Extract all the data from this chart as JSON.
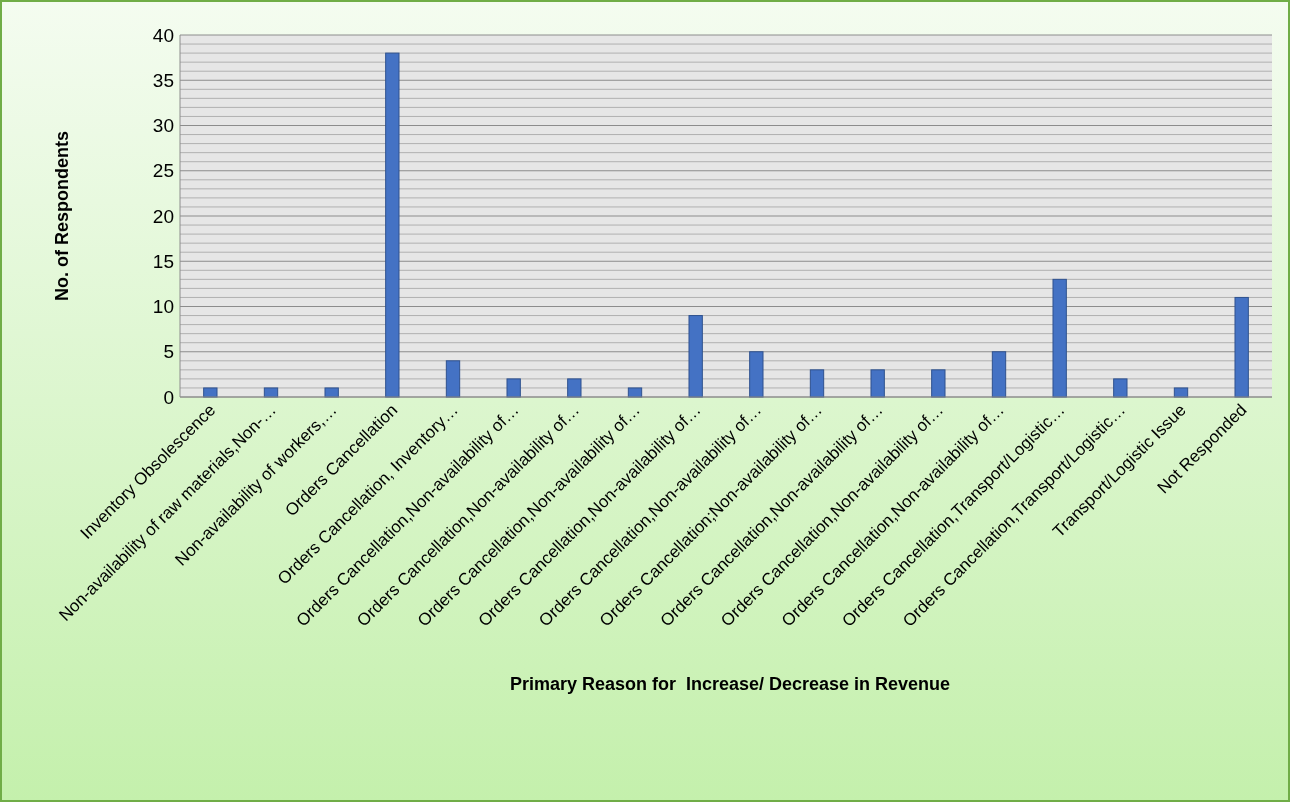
{
  "chart_data": {
    "type": "bar",
    "xlabel": "Primary Reason for  Increase/ Decrease in Revenue",
    "ylabel": "No. of Respondents",
    "categories": [
      "Inventory Obsolescence",
      "Non-availability of raw materials,Non-…",
      "Non-availability of workers,…",
      "Orders Cancellation",
      "Orders Cancellation, Inventory…",
      "Orders Cancellation,Non-availability of…",
      "Orders Cancellation,Non-availability of…",
      "Orders Cancellation,Non-availability of…",
      "Orders Cancellation,Non-availability of…",
      "Orders Cancellation,Non-availability of…",
      "Orders Cancellation;Non-availability of…",
      "Orders Cancellation,Non-availability of…",
      "Orders Cancellation,Non-availability of…",
      "Orders Cancellation,Non-availability of…",
      "Orders Cancellation,Transport/Logistic…",
      "Orders Cancellation,Transport/Logistic…",
      "Transport/Logistic Issue",
      "Not Responded"
    ],
    "values": [
      1,
      1,
      1,
      38,
      4,
      2,
      2,
      1,
      9,
      5,
      3,
      3,
      3,
      5,
      13,
      2,
      1,
      11
    ],
    "color": "#4472c4",
    "ylim": [
      0,
      40
    ],
    "yticks": [
      0,
      {
        "value": 1,
        "label": null
      },
      {
        "value": 2,
        "label": null
      },
      {
        "value": 3,
        "label": null
      },
      {
        "value": 4,
        "label": null
      },
      5,
      {
        "value": 6,
        "label": null
      },
      {
        "value": 7,
        "label": null
      },
      {
        "value": 8,
        "label": null
      },
      {
        "value": 9,
        "label": null
      },
      10,
      {
        "value": 11,
        "label": null
      },
      {
        "value": 12,
        "label": null
      },
      {
        "value": 13,
        "label": null
      },
      {
        "value": 14,
        "label": null
      },
      15,
      {
        "value": 16,
        "label": null
      },
      {
        "value": 17,
        "label": null
      },
      {
        "value": 18,
        "label": null
      },
      {
        "value": 19,
        "label": null
      },
      20,
      {
        "value": 21,
        "label": null
      },
      {
        "value": 22,
        "label": null
      },
      {
        "value": 23,
        "label": null
      },
      {
        "value": 24,
        "label": null
      },
      25,
      {
        "value": 26,
        "label": null
      },
      {
        "value": 27,
        "label": null
      },
      {
        "value": 28,
        "label": null
      },
      {
        "value": 29,
        "label": null
      },
      30,
      {
        "value": 31,
        "label": null
      },
      {
        "value": 32,
        "label": null
      },
      {
        "value": 33,
        "label": null
      },
      {
        "value": 34,
        "label": null
      },
      35,
      {
        "value": 36,
        "label": null
      },
      {
        "value": 37,
        "label": null
      },
      {
        "value": 38,
        "label": null
      },
      {
        "value": 39,
        "label": null
      },
      40
    ],
    "grid": "y"
  }
}
